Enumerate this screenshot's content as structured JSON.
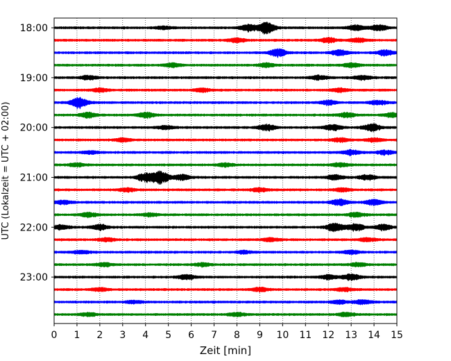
{
  "chart_data": {
    "type": "line",
    "title": "",
    "xlabel": "Zeit  [min]",
    "ylabel": "UTC (Lokalzeit = UTC + 02:00)",
    "xlim": [
      0,
      15
    ],
    "x_ticks": [
      0,
      1,
      2,
      3,
      4,
      5,
      6,
      7,
      8,
      9,
      10,
      11,
      12,
      13,
      14,
      15
    ],
    "x_tick_labels": [
      "0",
      "1",
      "2",
      "3",
      "4",
      "5",
      "6",
      "7",
      "8",
      "9",
      "10",
      "11",
      "12",
      "13",
      "14",
      "15"
    ],
    "y_tick_labels": [
      "18:00",
      "19:00",
      "20:00",
      "21:00",
      "22:00",
      "23:00"
    ],
    "grid": "vertical dotted at each minute",
    "trace_minutes": 15,
    "traces": [
      {
        "start": "18:00",
        "color": "#000000",
        "bursts": [
          [
            8.5,
            1.0
          ],
          [
            9.3,
            1.6
          ],
          [
            13.2,
            0.7
          ],
          [
            14.2,
            0.9
          ],
          [
            4.8,
            0.4
          ]
        ]
      },
      {
        "start": "18:15",
        "color": "#ff0000",
        "bursts": [
          [
            8.0,
            0.6
          ],
          [
            12.0,
            0.7
          ],
          [
            13.3,
            0.6
          ]
        ]
      },
      {
        "start": "18:30",
        "color": "#0000ff",
        "bursts": [
          [
            9.8,
            1.1
          ],
          [
            12.5,
            0.8
          ],
          [
            14.5,
            0.8
          ]
        ]
      },
      {
        "start": "18:45",
        "color": "#008000",
        "bursts": [
          [
            5.2,
            0.6
          ],
          [
            9.3,
            0.6
          ],
          [
            13.0,
            0.6
          ]
        ]
      },
      {
        "start": "19:00",
        "color": "#000000",
        "bursts": [
          [
            1.5,
            0.6
          ],
          [
            11.6,
            0.6
          ],
          [
            13.5,
            0.6
          ]
        ]
      },
      {
        "start": "19:15",
        "color": "#ff0000",
        "bursts": [
          [
            2.0,
            0.5
          ],
          [
            6.5,
            0.5
          ],
          [
            12.5,
            0.5
          ]
        ]
      },
      {
        "start": "19:30",
        "color": "#0000ff",
        "bursts": [
          [
            1.1,
            1.5
          ],
          [
            12.0,
            0.6
          ],
          [
            14.2,
            0.6
          ]
        ]
      },
      {
        "start": "19:45",
        "color": "#008000",
        "bursts": [
          [
            1.5,
            0.7
          ],
          [
            4.0,
            0.8
          ],
          [
            12.8,
            0.7
          ],
          [
            14.8,
            0.6
          ]
        ]
      },
      {
        "start": "20:00",
        "color": "#000000",
        "bursts": [
          [
            9.3,
            0.9
          ],
          [
            12.2,
            0.9
          ],
          [
            13.9,
            1.1
          ],
          [
            4.9,
            0.5
          ]
        ]
      },
      {
        "start": "20:15",
        "color": "#ff0000",
        "bursts": [
          [
            3.0,
            0.5
          ],
          [
            12.5,
            0.6
          ],
          [
            14.0,
            0.5
          ]
        ]
      },
      {
        "start": "20:30",
        "color": "#0000ff",
        "bursts": [
          [
            1.6,
            0.4
          ],
          [
            13.0,
            0.7
          ],
          [
            14.5,
            0.6
          ]
        ]
      },
      {
        "start": "20:45",
        "color": "#008000",
        "bursts": [
          [
            1.0,
            0.5
          ],
          [
            7.5,
            0.5
          ],
          [
            12.5,
            0.6
          ]
        ]
      },
      {
        "start": "21:00",
        "color": "#000000",
        "bursts": [
          [
            4.0,
            1.2
          ],
          [
            4.65,
            1.8
          ],
          [
            5.6,
            0.8
          ],
          [
            12.3,
            0.7
          ],
          [
            13.7,
            0.7
          ]
        ]
      },
      {
        "start": "21:15",
        "color": "#ff0000",
        "bursts": [
          [
            3.2,
            0.5
          ],
          [
            9.0,
            0.5
          ],
          [
            12.6,
            0.5
          ]
        ]
      },
      {
        "start": "21:30",
        "color": "#0000ff",
        "bursts": [
          [
            0.4,
            0.5
          ],
          [
            12.5,
            0.9
          ],
          [
            14.0,
            0.8
          ]
        ]
      },
      {
        "start": "21:45",
        "color": "#008000",
        "bursts": [
          [
            1.5,
            0.6
          ],
          [
            4.2,
            0.5
          ],
          [
            13.2,
            0.6
          ]
        ]
      },
      {
        "start": "22:00",
        "color": "#000000",
        "bursts": [
          [
            0.3,
            0.6
          ],
          [
            2.0,
            0.8
          ],
          [
            12.3,
            1.2
          ],
          [
            13.2,
            1.0
          ],
          [
            14.4,
            0.8
          ]
        ]
      },
      {
        "start": "22:15",
        "color": "#ff0000",
        "bursts": [
          [
            2.3,
            0.5
          ],
          [
            9.5,
            0.5
          ],
          [
            13.7,
            0.5
          ]
        ]
      },
      {
        "start": "22:30",
        "color": "#0000ff",
        "bursts": [
          [
            1.2,
            0.4
          ],
          [
            8.3,
            0.4
          ],
          [
            13.0,
            0.5
          ]
        ]
      },
      {
        "start": "22:45",
        "color": "#008000",
        "bursts": [
          [
            2.2,
            0.5
          ],
          [
            6.5,
            0.5
          ],
          [
            13.3,
            0.5
          ]
        ]
      },
      {
        "start": "23:00",
        "color": "#000000",
        "bursts": [
          [
            5.8,
            0.7
          ],
          [
            12.0,
            0.6
          ],
          [
            13.0,
            0.9
          ]
        ]
      },
      {
        "start": "23:15",
        "color": "#ff0000",
        "bursts": [
          [
            2.0,
            0.5
          ],
          [
            9.0,
            0.6
          ],
          [
            12.7,
            0.5
          ]
        ]
      },
      {
        "start": "23:30",
        "color": "#0000ff",
        "bursts": [
          [
            3.5,
            0.4
          ],
          [
            12.5,
            0.5
          ],
          [
            13.5,
            0.6
          ]
        ]
      },
      {
        "start": "23:45",
        "color": "#008000",
        "bursts": [
          [
            1.5,
            0.5
          ],
          [
            8.0,
            0.5
          ],
          [
            12.8,
            0.5
          ]
        ]
      }
    ]
  }
}
